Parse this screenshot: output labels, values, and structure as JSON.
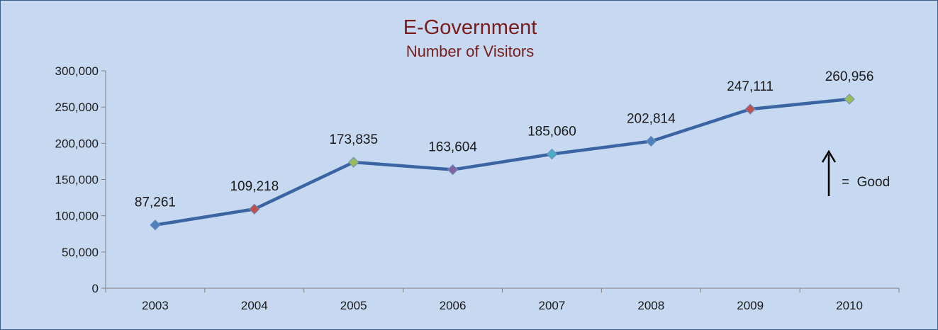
{
  "chart_data": {
    "type": "line",
    "title": "E-Government",
    "subtitle": "Number of Visitors",
    "categories": [
      "2003",
      "2004",
      "2005",
      "2006",
      "2007",
      "2008",
      "2009",
      "2010"
    ],
    "values": [
      87261,
      109218,
      173835,
      163604,
      185060,
      202814,
      247111,
      260956
    ],
    "data_labels": [
      "87,261",
      "109,218",
      "173,835",
      "163,604",
      "185,060",
      "202,814",
      "247,111",
      "260,956"
    ],
    "y_ticks": [
      "0",
      "50,000",
      "100,000",
      "150,000",
      "200,000",
      "250,000",
      "300,000"
    ],
    "ylim": [
      0,
      300000
    ],
    "line_color": "#3b64a2",
    "marker_colors": [
      "#4f81bd",
      "#c0504d",
      "#9bbb59",
      "#8064a2",
      "#4bacc6",
      "#4f81bd",
      "#c0504d",
      "#9bbb59"
    ],
    "grid": false,
    "legend": "none",
    "annotation": {
      "arrow": "up-arrow",
      "text": "=  Good"
    }
  }
}
